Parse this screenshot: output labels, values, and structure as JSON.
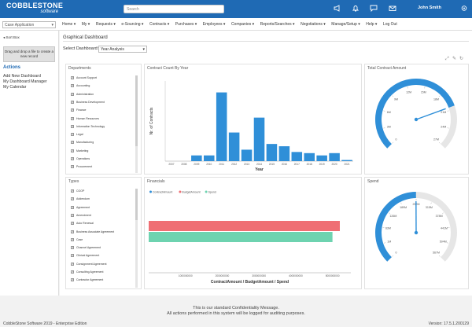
{
  "header": {
    "logo_line1": "COBBLESTONE",
    "logo_line2": "software",
    "search_placeholder": "Search",
    "user_name": "John Smith"
  },
  "nav": {
    "case_select": "Case Application",
    "items": [
      "Home",
      "My",
      "Requests",
      "e-Sourcing",
      "Contracts",
      "Purchases",
      "Employees",
      "Companies",
      "Reports/Searches",
      "Negotiations",
      "Manage/Setup",
      "Help",
      "Log Out"
    ]
  },
  "sidebar": {
    "dropzone_text": "Drag and drop a file to create a new record",
    "toggle": "Sort Box",
    "actions_heading": "Actions",
    "actions": [
      "Add New Dashboard",
      "My Dashboard Manager",
      "My Calendar"
    ]
  },
  "main": {
    "page_title": "Graphical Dashboard",
    "select_label": "Select Dashboard:",
    "selected_dashboard": "Year Analysis"
  },
  "departments": {
    "title": "Departments",
    "items": [
      "Account Support",
      "Accounting",
      "Administration",
      "Business Development",
      "Finance",
      "Human Resources",
      "Information Technology",
      "Legal",
      "Manufacturing",
      "Marketing",
      "Operations",
      "Procurement"
    ]
  },
  "types": {
    "title": "Types",
    "items": [
      "COOP",
      "Addendum",
      "Agreement",
      "Amendment",
      "Auto Renewal",
      "Business Associate Agreement",
      "Case",
      "Channel Agreement",
      "Clinical Agreement",
      "Consignment Agreement",
      "Consulting Agreement",
      "Contractor Agreement"
    ]
  },
  "chart_data": [
    {
      "type": "bar",
      "title": "Contract Count By Year",
      "xlabel": "Year",
      "ylabel": "Nr. of Contracts",
      "categories": [
        "2007",
        "2008",
        "2009",
        "2010",
        "2011",
        "2012",
        "2013",
        "2014",
        "2015",
        "2016",
        "2017",
        "2018",
        "2019",
        "2020",
        "2021"
      ],
      "values": [
        0,
        0,
        5,
        5,
        60,
        25,
        10,
        38,
        15,
        13,
        8,
        7,
        5,
        7,
        1
      ],
      "color": "#2f8fd8"
    },
    {
      "type": "bar",
      "orientation": "horizontal",
      "title": "Financials",
      "xlabel": "ContractAmount / BudgetAmount / Spend",
      "series": [
        {
          "name": "ContractAmount",
          "value": 0,
          "color": "#2f8fd8"
        },
        {
          "name": "BudgetAmount",
          "value": 5200000000,
          "color": "#ef6f74"
        },
        {
          "name": "Spend",
          "value": 5000000000,
          "color": "#6ed3b0"
        }
      ],
      "xticks": [
        "1000000000",
        "2000000000",
        "3000000000",
        "4000000000",
        "5000000000"
      ]
    },
    {
      "type": "gauge",
      "title": "Total Contract Amount",
      "ticks": [
        "0",
        "3M",
        "6M",
        "9M",
        "12M",
        "15M",
        "18M",
        "21M",
        "24M",
        "27M"
      ],
      "value": 20500000,
      "max": 27000000
    },
    {
      "type": "gauge",
      "title": "Spend",
      "ticks": [
        "0",
        "1M",
        "63M",
        "126M",
        "189M",
        "252M",
        "315M",
        "378M",
        "441M",
        "504M",
        "567M"
      ],
      "value": 283000000,
      "max": 567000000
    }
  ],
  "footer": {
    "line1": "This is our standard Confidentiality Message.",
    "line2": "All actions performed in this system will be logged for auditing purposes.",
    "copyright": "CobbleStone Software 2019 - Enterprise Edition",
    "version": "Version: 17.5.1.200129"
  }
}
